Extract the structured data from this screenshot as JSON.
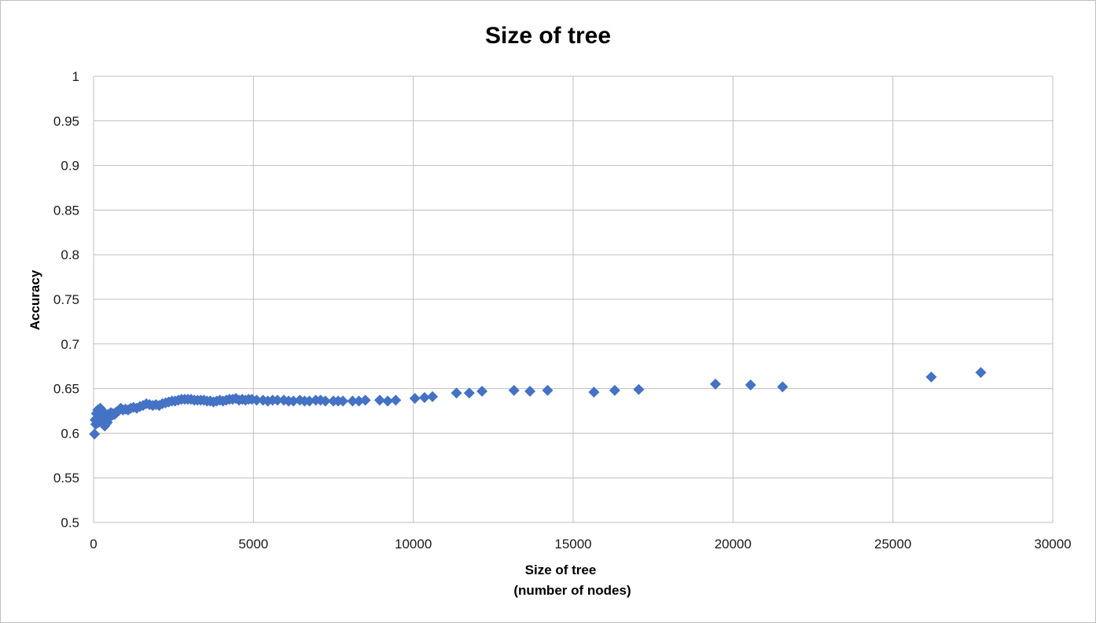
{
  "chart_data": {
    "type": "scatter",
    "title": "Size of tree",
    "xlabel": [
      "Size of tree",
      "(number of nodes)"
    ],
    "ylabel": "Accuracy",
    "xlim": [
      0,
      30000
    ],
    "ylim": [
      0.5,
      1
    ],
    "x_ticks": [
      "0",
      "5000",
      "10000",
      "15000",
      "20000",
      "25000",
      "30000"
    ],
    "y_ticks": [
      "0.5",
      "0.55",
      "0.6",
      "0.65",
      "0.7",
      "0.75",
      "0.8",
      "0.85",
      "0.9",
      "0.95",
      "1"
    ],
    "grid": true,
    "legend": false,
    "marker": "diamond",
    "marker_color": "#4472c4",
    "series": [
      {
        "points": [
          [
            30,
            0.599
          ],
          [
            50,
            0.615
          ],
          [
            70,
            0.61
          ],
          [
            90,
            0.622
          ],
          [
            110,
            0.617
          ],
          [
            130,
            0.626
          ],
          [
            150,
            0.612
          ],
          [
            170,
            0.624
          ],
          [
            190,
            0.62
          ],
          [
            210,
            0.628
          ],
          [
            230,
            0.615
          ],
          [
            250,
            0.621
          ],
          [
            270,
            0.625
          ],
          [
            290,
            0.611
          ],
          [
            310,
            0.618
          ],
          [
            330,
            0.623
          ],
          [
            350,
            0.608
          ],
          [
            370,
            0.616
          ],
          [
            400,
            0.62
          ],
          [
            430,
            0.612
          ],
          [
            460,
            0.621
          ],
          [
            500,
            0.618
          ],
          [
            540,
            0.623
          ],
          [
            580,
            0.62
          ],
          [
            620,
            0.622
          ],
          [
            660,
            0.621
          ],
          [
            720,
            0.624
          ],
          [
            780,
            0.625
          ],
          [
            850,
            0.628
          ],
          [
            920,
            0.626
          ],
          [
            1000,
            0.627
          ],
          [
            1080,
            0.626
          ],
          [
            1160,
            0.628
          ],
          [
            1250,
            0.629
          ],
          [
            1350,
            0.628
          ],
          [
            1450,
            0.63
          ],
          [
            1550,
            0.631
          ],
          [
            1650,
            0.633
          ],
          [
            1750,
            0.632
          ],
          [
            1850,
            0.631
          ],
          [
            1950,
            0.632
          ],
          [
            2050,
            0.631
          ],
          [
            2150,
            0.633
          ],
          [
            2250,
            0.634
          ],
          [
            2350,
            0.635
          ],
          [
            2450,
            0.636
          ],
          [
            2550,
            0.636
          ],
          [
            2650,
            0.637
          ],
          [
            2750,
            0.638
          ],
          [
            2850,
            0.638
          ],
          [
            2950,
            0.638
          ],
          [
            3050,
            0.638
          ],
          [
            3150,
            0.637
          ],
          [
            3250,
            0.637
          ],
          [
            3350,
            0.637
          ],
          [
            3450,
            0.637
          ],
          [
            3550,
            0.636
          ],
          [
            3650,
            0.636
          ],
          [
            3750,
            0.635
          ],
          [
            3850,
            0.636
          ],
          [
            3950,
            0.637
          ],
          [
            4050,
            0.636
          ],
          [
            4150,
            0.637
          ],
          [
            4250,
            0.638
          ],
          [
            4350,
            0.638
          ],
          [
            4450,
            0.639
          ],
          [
            4550,
            0.637
          ],
          [
            4650,
            0.638
          ],
          [
            4750,
            0.637
          ],
          [
            4850,
            0.638
          ],
          [
            4950,
            0.638
          ],
          [
            5100,
            0.637
          ],
          [
            5300,
            0.637
          ],
          [
            5450,
            0.636
          ],
          [
            5600,
            0.637
          ],
          [
            5750,
            0.637
          ],
          [
            5950,
            0.637
          ],
          [
            6100,
            0.636
          ],
          [
            6250,
            0.636
          ],
          [
            6450,
            0.637
          ],
          [
            6600,
            0.636
          ],
          [
            6750,
            0.636
          ],
          [
            6950,
            0.637
          ],
          [
            7100,
            0.637
          ],
          [
            7250,
            0.636
          ],
          [
            7500,
            0.636
          ],
          [
            7650,
            0.636
          ],
          [
            7800,
            0.636
          ],
          [
            8100,
            0.636
          ],
          [
            8300,
            0.636
          ],
          [
            8500,
            0.637
          ],
          [
            8950,
            0.637
          ],
          [
            9200,
            0.636
          ],
          [
            9450,
            0.637
          ],
          [
            10050,
            0.639
          ],
          [
            10350,
            0.64
          ],
          [
            10600,
            0.641
          ],
          [
            11350,
            0.645
          ],
          [
            11750,
            0.645
          ],
          [
            12150,
            0.647
          ],
          [
            13150,
            0.648
          ],
          [
            13650,
            0.647
          ],
          [
            14200,
            0.648
          ],
          [
            15650,
            0.646
          ],
          [
            16300,
            0.648
          ],
          [
            17050,
            0.649
          ],
          [
            19450,
            0.655
          ],
          [
            20550,
            0.654
          ],
          [
            21550,
            0.652
          ],
          [
            26200,
            0.663
          ],
          [
            27750,
            0.668
          ]
        ]
      }
    ]
  }
}
